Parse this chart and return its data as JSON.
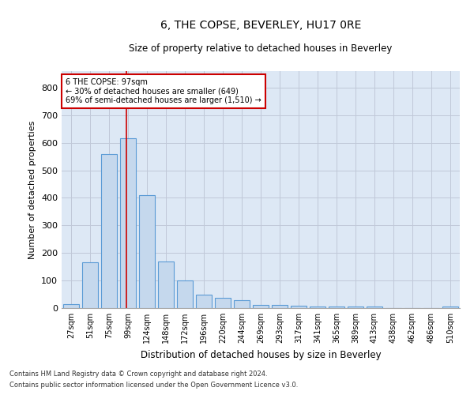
{
  "title": "6, THE COPSE, BEVERLEY, HU17 0RE",
  "subtitle": "Size of property relative to detached houses in Beverley",
  "xlabel": "Distribution of detached houses by size in Beverley",
  "ylabel": "Number of detached properties",
  "categories": [
    "27sqm",
    "51sqm",
    "75sqm",
    "99sqm",
    "124sqm",
    "148sqm",
    "172sqm",
    "196sqm",
    "220sqm",
    "244sqm",
    "269sqm",
    "293sqm",
    "317sqm",
    "341sqm",
    "365sqm",
    "389sqm",
    "413sqm",
    "438sqm",
    "462sqm",
    "486sqm",
    "510sqm"
  ],
  "values": [
    15,
    165,
    560,
    615,
    410,
    170,
    100,
    50,
    38,
    30,
    12,
    12,
    8,
    5,
    5,
    5,
    5,
    1,
    1,
    1,
    5
  ],
  "bar_color": "#c5d8ed",
  "bar_edge_color": "#5b9bd5",
  "grid_color": "#c0c8d8",
  "background_color": "#dde8f5",
  "annotation_box_color": "#ffffff",
  "annotation_border_color": "#cc0000",
  "annotation_text_line1": "6 THE COPSE: 97sqm",
  "annotation_text_line2": "← 30% of detached houses are smaller (649)",
  "annotation_text_line3": "69% of semi-detached houses are larger (1,510) →",
  "ylim": [
    0,
    860
  ],
  "yticks": [
    0,
    100,
    200,
    300,
    400,
    500,
    600,
    700,
    800
  ],
  "footnote1": "Contains HM Land Registry data © Crown copyright and database right 2024.",
  "footnote2": "Contains public sector information licensed under the Open Government Licence v3.0."
}
